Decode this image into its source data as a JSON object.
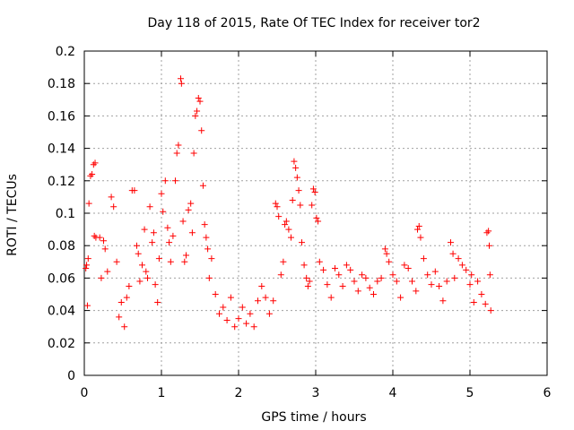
{
  "chart_data": {
    "type": "scatter",
    "title": "Day 118 of 2015, Rate Of TEC Index for receiver tor2",
    "xlabel": "GPS time / hours",
    "ylabel": "ROTI / TECUs",
    "xlim": [
      0,
      6
    ],
    "ylim": [
      0,
      0.2
    ],
    "x_ticks": [
      "0",
      "1",
      "2",
      "3",
      "4",
      "5",
      "6"
    ],
    "y_ticks": [
      "0",
      "0.02",
      "0.04",
      "0.06",
      "0.08",
      "0.1",
      "0.12",
      "0.14",
      "0.16",
      "0.18",
      "0.2"
    ],
    "grid": true,
    "marker": "plus",
    "series": [
      {
        "name": "ROTI tor2",
        "color": "#ff0000",
        "points": [
          [
            0.02,
            0.066
          ],
          [
            0.03,
            0.068
          ],
          [
            0.04,
            0.043
          ],
          [
            0.05,
            0.072
          ],
          [
            0.06,
            0.106
          ],
          [
            0.08,
            0.123
          ],
          [
            0.1,
            0.124
          ],
          [
            0.12,
            0.13
          ],
          [
            0.14,
            0.131
          ],
          [
            0.13,
            0.086
          ],
          [
            0.15,
            0.085
          ],
          [
            0.2,
            0.085
          ],
          [
            0.22,
            0.06
          ],
          [
            0.25,
            0.083
          ],
          [
            0.27,
            0.078
          ],
          [
            0.3,
            0.064
          ],
          [
            0.35,
            0.11
          ],
          [
            0.38,
            0.104
          ],
          [
            0.42,
            0.07
          ],
          [
            0.45,
            0.036
          ],
          [
            0.48,
            0.045
          ],
          [
            0.52,
            0.03
          ],
          [
            0.55,
            0.048
          ],
          [
            0.58,
            0.055
          ],
          [
            0.62,
            0.114
          ],
          [
            0.65,
            0.114
          ],
          [
            0.68,
            0.08
          ],
          [
            0.7,
            0.075
          ],
          [
            0.72,
            0.058
          ],
          [
            0.75,
            0.068
          ],
          [
            0.78,
            0.09
          ],
          [
            0.8,
            0.064
          ],
          [
            0.82,
            0.06
          ],
          [
            0.85,
            0.104
          ],
          [
            0.88,
            0.082
          ],
          [
            0.9,
            0.088
          ],
          [
            0.92,
            0.056
          ],
          [
            0.95,
            0.045
          ],
          [
            0.97,
            0.072
          ],
          [
            1.0,
            0.112
          ],
          [
            1.02,
            0.101
          ],
          [
            1.05,
            0.12
          ],
          [
            1.08,
            0.091
          ],
          [
            1.1,
            0.082
          ],
          [
            1.12,
            0.07
          ],
          [
            1.15,
            0.086
          ],
          [
            1.18,
            0.12
          ],
          [
            1.2,
            0.137
          ],
          [
            1.22,
            0.142
          ],
          [
            1.25,
            0.183
          ],
          [
            1.26,
            0.18
          ],
          [
            1.28,
            0.095
          ],
          [
            1.3,
            0.07
          ],
          [
            1.32,
            0.074
          ],
          [
            1.35,
            0.102
          ],
          [
            1.38,
            0.106
          ],
          [
            1.4,
            0.088
          ],
          [
            1.42,
            0.137
          ],
          [
            1.44,
            0.16
          ],
          [
            1.46,
            0.163
          ],
          [
            1.48,
            0.171
          ],
          [
            1.5,
            0.169
          ],
          [
            1.52,
            0.151
          ],
          [
            1.54,
            0.117
          ],
          [
            1.56,
            0.093
          ],
          [
            1.58,
            0.085
          ],
          [
            1.6,
            0.078
          ],
          [
            1.62,
            0.06
          ],
          [
            1.65,
            0.072
          ],
          [
            1.7,
            0.05
          ],
          [
            1.75,
            0.038
          ],
          [
            1.8,
            0.042
          ],
          [
            1.85,
            0.034
          ],
          [
            1.9,
            0.048
          ],
          [
            1.95,
            0.03
          ],
          [
            2.0,
            0.035
          ],
          [
            2.05,
            0.042
          ],
          [
            2.1,
            0.032
          ],
          [
            2.15,
            0.038
          ],
          [
            2.2,
            0.03
          ],
          [
            2.25,
            0.046
          ],
          [
            2.3,
            0.055
          ],
          [
            2.35,
            0.048
          ],
          [
            2.4,
            0.038
          ],
          [
            2.45,
            0.046
          ],
          [
            2.48,
            0.106
          ],
          [
            2.5,
            0.104
          ],
          [
            2.52,
            0.098
          ],
          [
            2.55,
            0.062
          ],
          [
            2.58,
            0.07
          ],
          [
            2.6,
            0.093
          ],
          [
            2.62,
            0.095
          ],
          [
            2.65,
            0.09
          ],
          [
            2.68,
            0.085
          ],
          [
            2.7,
            0.108
          ],
          [
            2.72,
            0.132
          ],
          [
            2.74,
            0.128
          ],
          [
            2.76,
            0.122
          ],
          [
            2.78,
            0.114
          ],
          [
            2.8,
            0.105
          ],
          [
            2.82,
            0.082
          ],
          [
            2.85,
            0.068
          ],
          [
            2.88,
            0.06
          ],
          [
            2.9,
            0.055
          ],
          [
            2.92,
            0.058
          ],
          [
            2.95,
            0.105
          ],
          [
            2.97,
            0.115
          ],
          [
            2.99,
            0.113
          ],
          [
            3.01,
            0.097
          ],
          [
            3.03,
            0.095
          ],
          [
            3.05,
            0.07
          ],
          [
            3.1,
            0.065
          ],
          [
            3.15,
            0.056
          ],
          [
            3.2,
            0.048
          ],
          [
            3.25,
            0.066
          ],
          [
            3.3,
            0.062
          ],
          [
            3.35,
            0.055
          ],
          [
            3.4,
            0.068
          ],
          [
            3.45,
            0.065
          ],
          [
            3.5,
            0.058
          ],
          [
            3.55,
            0.052
          ],
          [
            3.6,
            0.062
          ],
          [
            3.65,
            0.06
          ],
          [
            3.7,
            0.054
          ],
          [
            3.75,
            0.05
          ],
          [
            3.8,
            0.058
          ],
          [
            3.85,
            0.06
          ],
          [
            3.9,
            0.078
          ],
          [
            3.92,
            0.075
          ],
          [
            3.95,
            0.07
          ],
          [
            4.0,
            0.062
          ],
          [
            4.05,
            0.058
          ],
          [
            4.1,
            0.048
          ],
          [
            4.15,
            0.068
          ],
          [
            4.2,
            0.066
          ],
          [
            4.25,
            0.058
          ],
          [
            4.3,
            0.052
          ],
          [
            4.32,
            0.09
          ],
          [
            4.34,
            0.092
          ],
          [
            4.36,
            0.085
          ],
          [
            4.4,
            0.072
          ],
          [
            4.45,
            0.062
          ],
          [
            4.5,
            0.056
          ],
          [
            4.55,
            0.064
          ],
          [
            4.6,
            0.055
          ],
          [
            4.65,
            0.046
          ],
          [
            4.7,
            0.058
          ],
          [
            4.75,
            0.082
          ],
          [
            4.78,
            0.075
          ],
          [
            4.8,
            0.06
          ],
          [
            4.85,
            0.072
          ],
          [
            4.9,
            0.068
          ],
          [
            4.95,
            0.065
          ],
          [
            5.0,
            0.056
          ],
          [
            5.02,
            0.062
          ],
          [
            5.05,
            0.045
          ],
          [
            5.1,
            0.058
          ],
          [
            5.15,
            0.05
          ],
          [
            5.2,
            0.044
          ],
          [
            5.22,
            0.088
          ],
          [
            5.24,
            0.089
          ],
          [
            5.25,
            0.08
          ],
          [
            5.26,
            0.062
          ],
          [
            5.27,
            0.04
          ]
        ]
      }
    ]
  }
}
